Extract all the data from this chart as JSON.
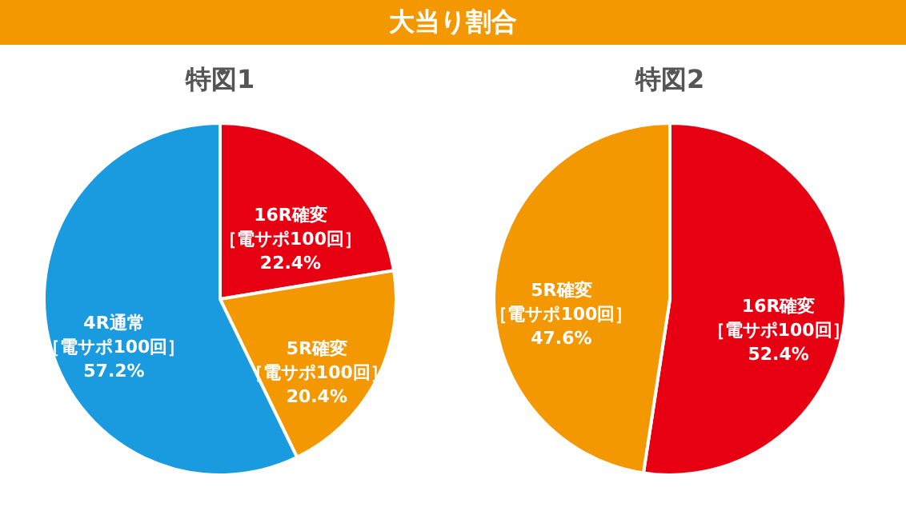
{
  "chart_data": [
    {
      "type": "pie",
      "title": "特図1",
      "annotations": [
        "大当り割合"
      ],
      "categories": [
        "16R確変［電サポ100回］",
        "5R確変［電サポ100回］",
        "4R通常［電サポ100回］"
      ],
      "values": [
        22.4,
        20.4,
        57.2
      ],
      "colors": [
        "#e60012",
        "#f39800",
        "#1a9be0"
      ],
      "value_labels": [
        "22.4%",
        "20.4%",
        "57.2%"
      ]
    },
    {
      "type": "pie",
      "title": "特図2",
      "categories": [
        "16R確変［電サポ100回］",
        "5R確変［電サポ100回］"
      ],
      "values": [
        52.4,
        47.6
      ],
      "colors": [
        "#e60012",
        "#f39800"
      ],
      "value_labels": [
        "52.4%",
        "47.6%"
      ]
    }
  ]
}
